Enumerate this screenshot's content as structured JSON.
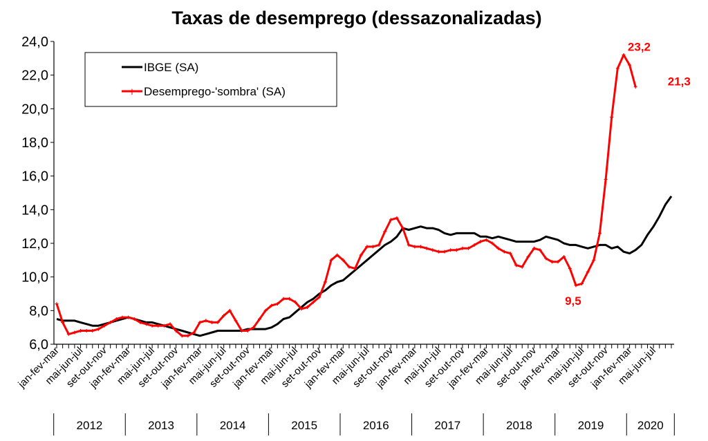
{
  "chart_data": {
    "type": "line",
    "title": "Taxas de desemprego (dessazonalizadas)",
    "xlabel": "",
    "ylabel": "",
    "ylim": [
      6.0,
      24.0
    ],
    "yticks": [
      "6,0",
      "8,0",
      "10,0",
      "12,0",
      "14,0",
      "16,0",
      "18,0",
      "20,0",
      "22,0",
      "24,0"
    ],
    "grid": false,
    "legend_position": "top-left",
    "x_tick_labels": [
      "jan-fev-mar",
      "mai-jun-jul",
      "set-out-nov",
      "jan-fev-mar",
      "mai-jun-jul",
      "set-out-nov",
      "jan-fev-mar",
      "mai-jun-jul",
      "set-out-nov",
      "jan-fev-mar",
      "mai-jun-jul",
      "set-out-nov",
      "jan-fev-mar",
      "mai-jun-jul",
      "set-out-nov",
      "jan-fev-mar",
      "mai-jun-jul",
      "set-out-nov",
      "jan-fev-mar",
      "mai-jun-jul",
      "set-out-nov",
      "jan-fev-mar",
      "mai-jun-jul",
      "set-out-nov",
      "jan-fev-mar",
      "mai-jun-jul"
    ],
    "x_tick_months": [
      1,
      5,
      9,
      13,
      17,
      21,
      25,
      29,
      33,
      37,
      41,
      45,
      49,
      53,
      57,
      61,
      65,
      69,
      73,
      77,
      81,
      85,
      89,
      93,
      97,
      101
    ],
    "years": [
      {
        "label": "2012",
        "start": 1,
        "end": 12
      },
      {
        "label": "2013",
        "start": 13,
        "end": 24
      },
      {
        "label": "2014",
        "start": 25,
        "end": 36
      },
      {
        "label": "2015",
        "start": 37,
        "end": 48
      },
      {
        "label": "2016",
        "start": 49,
        "end": 60
      },
      {
        "label": "2017",
        "start": 61,
        "end": 72
      },
      {
        "label": "2018",
        "start": 73,
        "end": 84
      },
      {
        "label": "2019",
        "start": 85,
        "end": 96
      },
      {
        "label": "2020",
        "start": 97,
        "end": 104
      }
    ],
    "series": [
      {
        "name": "IBGE (SA)",
        "color": "#000000",
        "values": [
          7.5,
          7.4,
          7.4,
          7.4,
          7.3,
          7.2,
          7.1,
          7.1,
          7.2,
          7.3,
          7.4,
          7.5,
          7.6,
          7.5,
          7.4,
          7.3,
          7.3,
          7.2,
          7.1,
          7.0,
          6.9,
          6.8,
          6.7,
          6.6,
          6.5,
          6.6,
          6.7,
          6.8,
          6.8,
          6.8,
          6.8,
          6.8,
          6.9,
          6.9,
          6.9,
          6.9,
          7.0,
          7.2,
          7.5,
          7.6,
          7.9,
          8.2,
          8.5,
          8.7,
          9.0,
          9.2,
          9.5,
          9.7,
          9.8,
          10.1,
          10.4,
          10.7,
          11.0,
          11.3,
          11.6,
          11.9,
          12.1,
          12.4,
          12.9,
          12.8,
          12.9,
          13.0,
          12.9,
          12.9,
          12.8,
          12.6,
          12.5,
          12.6,
          12.6,
          12.6,
          12.6,
          12.4,
          12.4,
          12.3,
          12.4,
          12.3,
          12.2,
          12.1,
          12.1,
          12.1,
          12.1,
          12.2,
          12.4,
          12.3,
          12.2,
          12.0,
          11.9,
          11.9,
          11.8,
          11.7,
          11.8,
          11.9,
          11.9,
          11.7,
          11.8,
          11.5,
          11.4,
          11.6,
          11.9,
          12.5,
          13.0,
          13.6,
          14.3,
          14.8
        ]
      },
      {
        "name": "Desemprego-'sombra' (SA)",
        "color": "#ff0000",
        "values": [
          8.4,
          7.3,
          6.6,
          6.7,
          6.8,
          6.8,
          6.8,
          6.9,
          7.1,
          7.3,
          7.5,
          7.6,
          7.6,
          7.5,
          7.3,
          7.2,
          7.1,
          7.1,
          7.1,
          7.2,
          6.8,
          6.5,
          6.5,
          6.7,
          7.3,
          7.4,
          7.3,
          7.3,
          7.7,
          8.0,
          7.4,
          6.8,
          6.8,
          7.0,
          7.5,
          8.0,
          8.3,
          8.4,
          8.7,
          8.7,
          8.5,
          8.1,
          8.2,
          8.5,
          8.8,
          9.7,
          11.0,
          11.3,
          11.0,
          10.6,
          10.5,
          11.3,
          11.8,
          11.8,
          11.9,
          12.7,
          13.4,
          13.5,
          12.9,
          11.9,
          11.8,
          11.8,
          11.7,
          11.6,
          11.5,
          11.5,
          11.6,
          11.6,
          11.7,
          11.7,
          11.9,
          12.1,
          12.2,
          12.0,
          11.7,
          11.5,
          11.4,
          10.7,
          10.6,
          11.2,
          11.7,
          11.6,
          11.1,
          10.9,
          10.9,
          11.2,
          10.5,
          9.5,
          9.6,
          10.3,
          11.0,
          12.6,
          15.8,
          19.5,
          22.4,
          23.2,
          22.6,
          21.3
        ]
      }
    ],
    "annotations": [
      {
        "text": "23,2",
        "month": 100,
        "value": 23.2
      },
      {
        "text": "21,3",
        "month": 102,
        "value": 21.3
      },
      {
        "text": "9,5",
        "month": 88,
        "value": 9.5
      }
    ]
  }
}
